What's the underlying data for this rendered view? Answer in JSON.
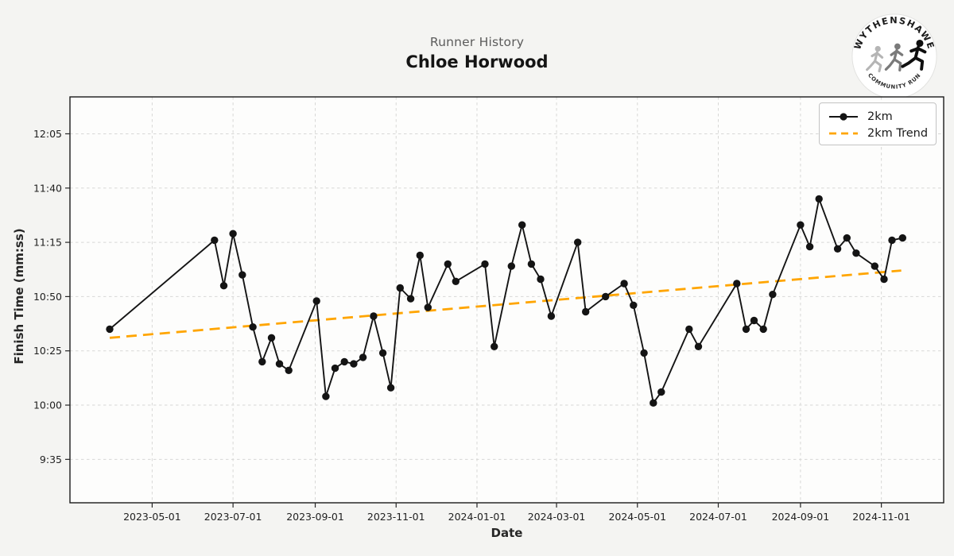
{
  "header": {
    "subtitle": "Runner History",
    "title": "Chloe Horwood"
  },
  "logo": {
    "top_text": "WYTHENSHAWE",
    "bottom_text": "COMMUNITY RUN"
  },
  "legend": {
    "items": [
      {
        "label": "2km",
        "swatch": "solid-line-with-marker",
        "color": "#141414"
      },
      {
        "label": "2km Trend",
        "swatch": "dashed-line",
        "color": "#FFA500"
      }
    ]
  },
  "chart_data": {
    "type": "line",
    "title": "Runner History",
    "subtitle": "Chloe Horwood",
    "xlabel": "Date",
    "ylabel": "Finish Time (mm:ss)",
    "grid": true,
    "legend_position": "upper right",
    "x_ticks": [
      "2023-05-01",
      "2023-07-01",
      "2023-09-01",
      "2023-11-01",
      "2024-01-01",
      "2024-03-01",
      "2024-05-01",
      "2024-07-01",
      "2024-09-01",
      "2024-11-01"
    ],
    "y_ticks": [
      "9:35",
      "10:00",
      "10:25",
      "10:50",
      "11:15",
      "11:40",
      "12:05"
    ],
    "x_range": [
      "2023-02-28",
      "2024-12-18"
    ],
    "y_range": [
      "9:15",
      "12:22"
    ],
    "series": [
      {
        "name": "2km",
        "style": "solid",
        "marker": "circle",
        "color": "#141414",
        "points": [
          [
            "2023-03-30",
            "10:35"
          ],
          [
            "2023-06-17",
            "11:16"
          ],
          [
            "2023-06-24",
            "10:55"
          ],
          [
            "2023-07-01",
            "11:19"
          ],
          [
            "2023-07-08",
            "11:00"
          ],
          [
            "2023-07-16",
            "10:36"
          ],
          [
            "2023-07-23",
            "10:20"
          ],
          [
            "2023-07-30",
            "10:31"
          ],
          [
            "2023-08-05",
            "10:19"
          ],
          [
            "2023-08-12",
            "10:16"
          ],
          [
            "2023-09-02",
            "10:48"
          ],
          [
            "2023-09-09",
            "10:04"
          ],
          [
            "2023-09-16",
            "10:17"
          ],
          [
            "2023-09-23",
            "10:20"
          ],
          [
            "2023-09-30",
            "10:19"
          ],
          [
            "2023-10-07",
            "10:22"
          ],
          [
            "2023-10-15",
            "10:41"
          ],
          [
            "2023-10-22",
            "10:24"
          ],
          [
            "2023-10-28",
            "10:08"
          ],
          [
            "2023-11-04",
            "10:54"
          ],
          [
            "2023-11-12",
            "10:49"
          ],
          [
            "2023-11-19",
            "11:09"
          ],
          [
            "2023-11-25",
            "10:45"
          ],
          [
            "2023-12-10",
            "11:05"
          ],
          [
            "2023-12-16",
            "10:57"
          ],
          [
            "2024-01-07",
            "11:05"
          ],
          [
            "2024-01-14",
            "10:27"
          ],
          [
            "2024-01-27",
            "11:04"
          ],
          [
            "2024-02-04",
            "11:23"
          ],
          [
            "2024-02-11",
            "11:05"
          ],
          [
            "2024-02-18",
            "10:58"
          ],
          [
            "2024-02-26",
            "10:41"
          ],
          [
            "2024-03-17",
            "11:15"
          ],
          [
            "2024-03-23",
            "10:43"
          ],
          [
            "2024-04-07",
            "10:50"
          ],
          [
            "2024-04-21",
            "10:56"
          ],
          [
            "2024-04-28",
            "10:46"
          ],
          [
            "2024-05-06",
            "10:24"
          ],
          [
            "2024-05-13",
            "10:01"
          ],
          [
            "2024-05-19",
            "10:06"
          ],
          [
            "2024-06-09",
            "10:35"
          ],
          [
            "2024-06-16",
            "10:27"
          ],
          [
            "2024-07-15",
            "10:56"
          ],
          [
            "2024-07-22",
            "10:35"
          ],
          [
            "2024-07-28",
            "10:39"
          ],
          [
            "2024-08-04",
            "10:35"
          ],
          [
            "2024-08-11",
            "10:51"
          ],
          [
            "2024-09-01",
            "11:23"
          ],
          [
            "2024-09-08",
            "11:13"
          ],
          [
            "2024-09-15",
            "11:35"
          ],
          [
            "2024-09-29",
            "11:12"
          ],
          [
            "2024-10-06",
            "11:17"
          ],
          [
            "2024-10-13",
            "11:10"
          ],
          [
            "2024-10-27",
            "11:04"
          ],
          [
            "2024-11-03",
            "10:58"
          ],
          [
            "2024-11-09",
            "11:16"
          ],
          [
            "2024-11-17",
            "11:17"
          ]
        ]
      },
      {
        "name": "2km Trend",
        "style": "dashed",
        "marker": "none",
        "color": "#FFA500",
        "points": [
          [
            "2023-03-30",
            "10:31"
          ],
          [
            "2024-11-16",
            "11:02"
          ]
        ]
      }
    ]
  }
}
